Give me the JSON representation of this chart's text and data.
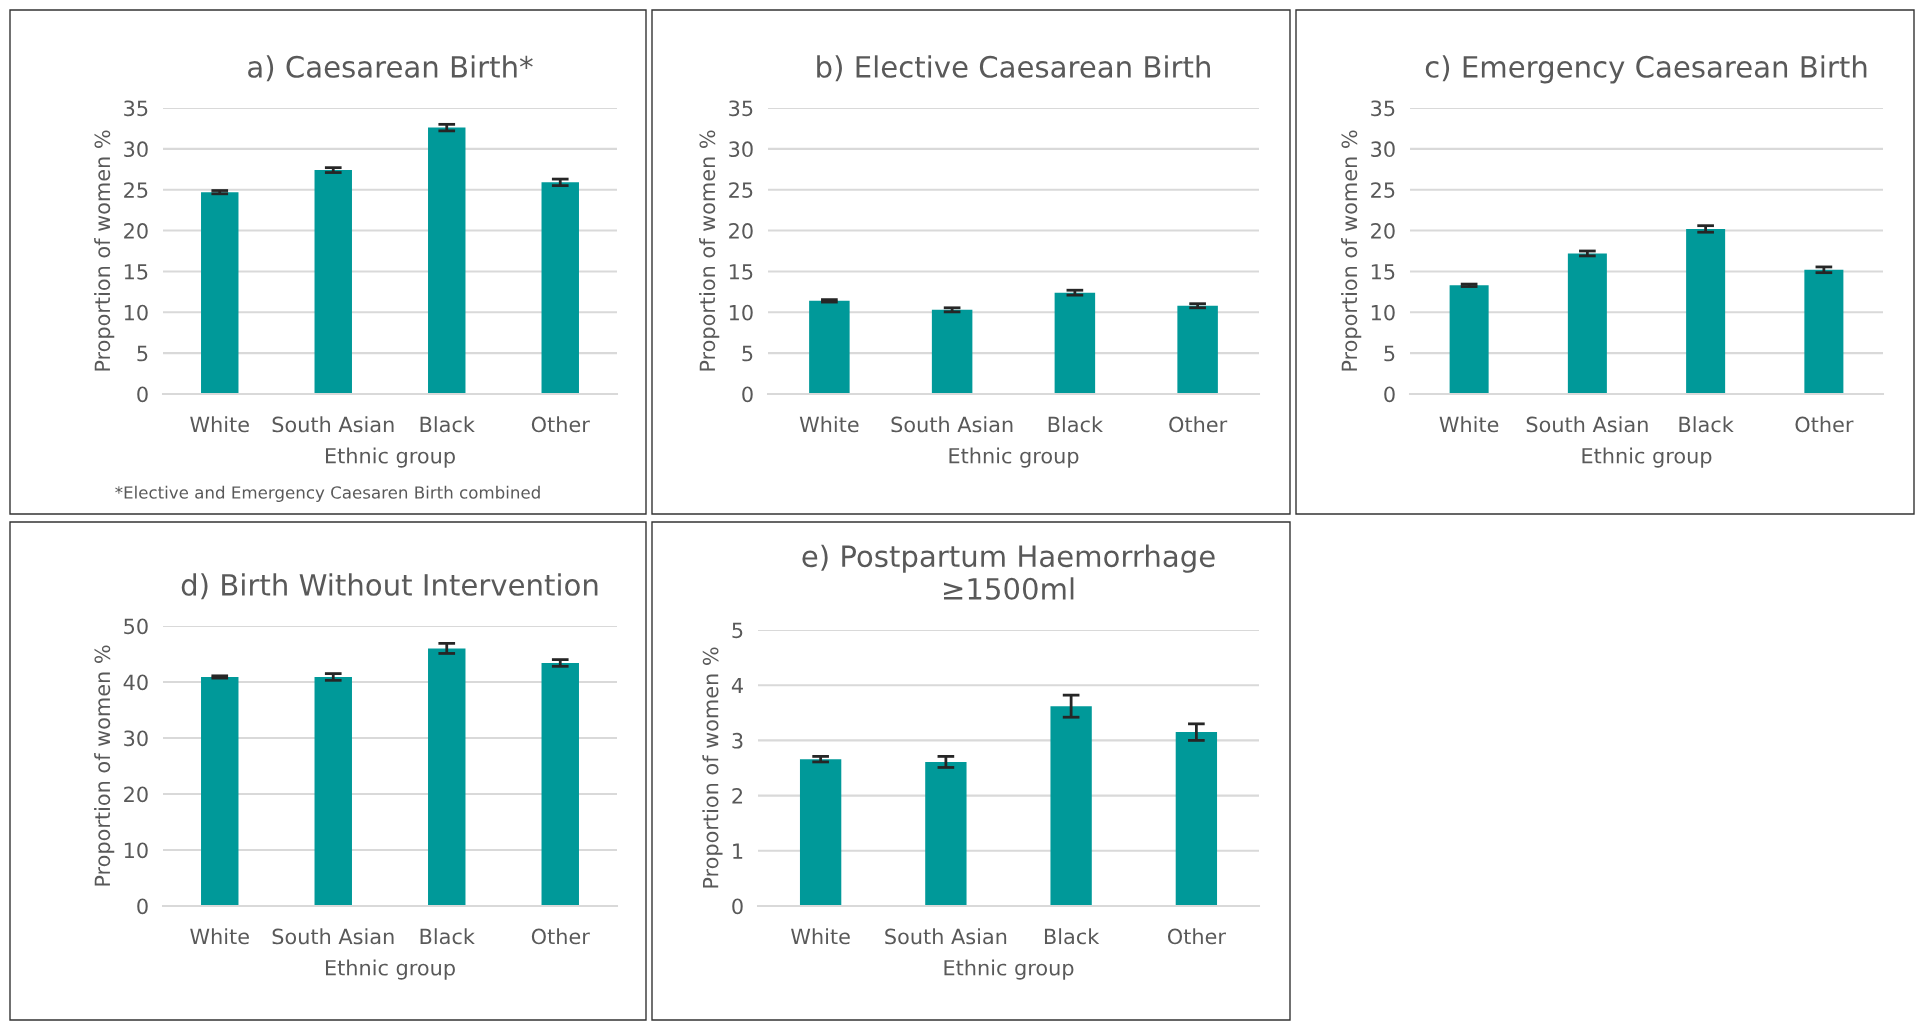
{
  "chart_data": [
    {
      "type": "bar",
      "title": "a) Caesarean Birth*",
      "xlabel": "Ethnic group",
      "ylabel": "Proportion of women %",
      "categories": [
        "White",
        "South Asian",
        "Black",
        "Other"
      ],
      "values": [
        24.7,
        27.4,
        32.6,
        25.9
      ],
      "errors": [
        0.2,
        0.3,
        0.4,
        0.4
      ],
      "color": "#009999",
      "ylim": [
        0,
        35
      ],
      "yticks": [
        0,
        5,
        10,
        15,
        20,
        25,
        30,
        35
      ],
      "grid": "y",
      "annotations": [
        "*Elective and Emergency Caesaren Birth combined"
      ]
    },
    {
      "type": "bar",
      "title": "b) Elective Caesarean Birth",
      "xlabel": "Ethnic group",
      "ylabel": "Proportion of women %",
      "categories": [
        "White",
        "South Asian",
        "Black",
        "Other"
      ],
      "values": [
        11.4,
        10.3,
        12.4,
        10.8
      ],
      "errors": [
        0.15,
        0.25,
        0.3,
        0.25
      ],
      "color": "#009999",
      "ylim": [
        0,
        35
      ],
      "yticks": [
        0,
        5,
        10,
        15,
        20,
        25,
        30,
        35
      ],
      "grid": "y"
    },
    {
      "type": "bar",
      "title": "c) Emergency Caesarean Birth",
      "xlabel": "Ethnic group",
      "ylabel": "Proportion of women %",
      "categories": [
        "White",
        "South Asian",
        "Black",
        "Other"
      ],
      "values": [
        13.3,
        17.2,
        20.2,
        15.2
      ],
      "errors": [
        0.15,
        0.3,
        0.4,
        0.35
      ],
      "color": "#009999",
      "ylim": [
        0,
        35
      ],
      "yticks": [
        0,
        5,
        10,
        15,
        20,
        25,
        30,
        35
      ],
      "grid": "y"
    },
    {
      "type": "bar",
      "title": "d) Birth Without Intervention",
      "xlabel": "Ethnic group",
      "ylabel": "Proportion of women %",
      "categories": [
        "White",
        "South Asian",
        "Black",
        "Other"
      ],
      "values": [
        40.9,
        40.9,
        46.0,
        43.4
      ],
      "errors": [
        0.2,
        0.6,
        0.9,
        0.6
      ],
      "color": "#009999",
      "ylim": [
        0,
        50
      ],
      "yticks": [
        0,
        10,
        20,
        30,
        40,
        50
      ],
      "grid": "y"
    },
    {
      "type": "bar",
      "title": "e) Postpartum Haemorrhage\n≥1500ml",
      "xlabel": "Ethnic group",
      "ylabel": "Proportion of women %",
      "categories": [
        "White",
        "South Asian",
        "Black",
        "Other"
      ],
      "values": [
        2.66,
        2.61,
        3.62,
        3.15
      ],
      "errors": [
        0.05,
        0.1,
        0.2,
        0.15
      ],
      "color": "#009999",
      "ylim": [
        0,
        5
      ],
      "yticks": [
        0,
        1,
        2,
        3,
        4,
        5
      ],
      "grid": "y"
    }
  ]
}
